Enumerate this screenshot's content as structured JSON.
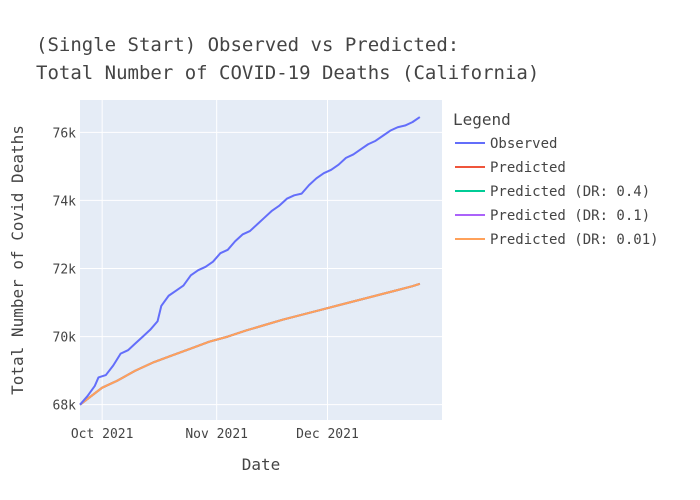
{
  "chart_data": {
    "type": "line",
    "title_lines": [
      "(Single Start) Observed vs Predicted:",
      "Total Number of COVID-19 Deaths (California)"
    ],
    "xlabel": "Date",
    "ylabel": "Total Number of Covid Deaths",
    "xlim": [
      "2021-09-25",
      "2022-01-01"
    ],
    "ylim": [
      67550,
      76950
    ],
    "x_ticks": [
      {
        "date": "2021-10-01",
        "label": "Oct 2021"
      },
      {
        "date": "2021-11-01",
        "label": "Nov 2021"
      },
      {
        "date": "2021-12-01",
        "label": "Dec 2021"
      }
    ],
    "y_ticks": [
      {
        "value": 68000,
        "label": "68k"
      },
      {
        "value": 70000,
        "label": "70k"
      },
      {
        "value": 72000,
        "label": "72k"
      },
      {
        "value": 74000,
        "label": "74k"
      },
      {
        "value": 76000,
        "label": "76k"
      }
    ],
    "grid": true,
    "legend_title": "Legend",
    "legend_position": "right",
    "colors": {
      "plot_bg": "#e5ecf6",
      "grid": "#ffffff"
    },
    "series": [
      {
        "name": "Observed",
        "color": "#636efa",
        "points": [
          [
            "2021-09-25",
            68000
          ],
          [
            "2021-09-27",
            68250
          ],
          [
            "2021-09-29",
            68550
          ],
          [
            "2021-09-30",
            68800
          ],
          [
            "2021-10-02",
            68870
          ],
          [
            "2021-10-04",
            69150
          ],
          [
            "2021-10-06",
            69500
          ],
          [
            "2021-10-08",
            69600
          ],
          [
            "2021-10-10",
            69800
          ],
          [
            "2021-10-12",
            70000
          ],
          [
            "2021-10-14",
            70200
          ],
          [
            "2021-10-16",
            70450
          ],
          [
            "2021-10-17",
            70900
          ],
          [
            "2021-10-19",
            71200
          ],
          [
            "2021-10-21",
            71350
          ],
          [
            "2021-10-23",
            71500
          ],
          [
            "2021-10-25",
            71800
          ],
          [
            "2021-10-27",
            71950
          ],
          [
            "2021-10-29",
            72050
          ],
          [
            "2021-10-31",
            72200
          ],
          [
            "2021-11-02",
            72450
          ],
          [
            "2021-11-04",
            72550
          ],
          [
            "2021-11-06",
            72800
          ],
          [
            "2021-11-08",
            73000
          ],
          [
            "2021-11-10",
            73100
          ],
          [
            "2021-11-12",
            73300
          ],
          [
            "2021-11-14",
            73500
          ],
          [
            "2021-11-16",
            73700
          ],
          [
            "2021-11-18",
            73850
          ],
          [
            "2021-11-20",
            74050
          ],
          [
            "2021-11-22",
            74150
          ],
          [
            "2021-11-24",
            74200
          ],
          [
            "2021-11-26",
            74450
          ],
          [
            "2021-11-28",
            74650
          ],
          [
            "2021-11-30",
            74800
          ],
          [
            "2021-12-02",
            74900
          ],
          [
            "2021-12-04",
            75050
          ],
          [
            "2021-12-06",
            75250
          ],
          [
            "2021-12-08",
            75350
          ],
          [
            "2021-12-10",
            75500
          ],
          [
            "2021-12-12",
            75650
          ],
          [
            "2021-12-14",
            75750
          ],
          [
            "2021-12-16",
            75900
          ],
          [
            "2021-12-18",
            76050
          ],
          [
            "2021-12-20",
            76150
          ],
          [
            "2021-12-22",
            76200
          ],
          [
            "2021-12-24",
            76300
          ],
          [
            "2021-12-26",
            76450
          ]
        ]
      },
      {
        "name": "Predicted",
        "color": "#ef553b",
        "points": [
          [
            "2021-09-25",
            68000
          ],
          [
            "2021-09-28",
            68250
          ],
          [
            "2021-10-01",
            68500
          ],
          [
            "2021-10-05",
            68700
          ],
          [
            "2021-10-10",
            69000
          ],
          [
            "2021-10-15",
            69250
          ],
          [
            "2021-10-20",
            69450
          ],
          [
            "2021-10-25",
            69650
          ],
          [
            "2021-10-30",
            69850
          ],
          [
            "2021-11-04",
            70000
          ],
          [
            "2021-11-09",
            70180
          ],
          [
            "2021-11-14",
            70340
          ],
          [
            "2021-11-19",
            70500
          ],
          [
            "2021-11-24",
            70640
          ],
          [
            "2021-11-29",
            70780
          ],
          [
            "2021-12-04",
            70920
          ],
          [
            "2021-12-09",
            71060
          ],
          [
            "2021-12-14",
            71200
          ],
          [
            "2021-12-19",
            71340
          ],
          [
            "2021-12-24",
            71480
          ],
          [
            "2021-12-26",
            71550
          ]
        ]
      },
      {
        "name": "Predicted (DR: 0.4)",
        "color": "#00cc96",
        "points": [
          [
            "2021-09-25",
            68000
          ],
          [
            "2021-09-28",
            68250
          ],
          [
            "2021-10-01",
            68500
          ],
          [
            "2021-10-05",
            68700
          ],
          [
            "2021-10-10",
            69000
          ],
          [
            "2021-10-15",
            69250
          ],
          [
            "2021-10-20",
            69450
          ],
          [
            "2021-10-25",
            69650
          ],
          [
            "2021-10-30",
            69850
          ],
          [
            "2021-11-04",
            70000
          ],
          [
            "2021-11-09",
            70180
          ],
          [
            "2021-11-14",
            70340
          ],
          [
            "2021-11-19",
            70500
          ],
          [
            "2021-11-24",
            70640
          ],
          [
            "2021-11-29",
            70780
          ],
          [
            "2021-12-04",
            70920
          ],
          [
            "2021-12-09",
            71060
          ],
          [
            "2021-12-14",
            71200
          ],
          [
            "2021-12-19",
            71340
          ],
          [
            "2021-12-24",
            71480
          ],
          [
            "2021-12-26",
            71550
          ]
        ]
      },
      {
        "name": "Predicted (DR: 0.1)",
        "color": "#ab63fa",
        "points": [
          [
            "2021-09-25",
            68000
          ],
          [
            "2021-09-28",
            68250
          ],
          [
            "2021-10-01",
            68500
          ],
          [
            "2021-10-05",
            68700
          ],
          [
            "2021-10-10",
            69000
          ],
          [
            "2021-10-15",
            69250
          ],
          [
            "2021-10-20",
            69450
          ],
          [
            "2021-10-25",
            69650
          ],
          [
            "2021-10-30",
            69850
          ],
          [
            "2021-11-04",
            70000
          ],
          [
            "2021-11-09",
            70180
          ],
          [
            "2021-11-14",
            70340
          ],
          [
            "2021-11-19",
            70500
          ],
          [
            "2021-11-24",
            70640
          ],
          [
            "2021-11-29",
            70780
          ],
          [
            "2021-12-04",
            70920
          ],
          [
            "2021-12-09",
            71060
          ],
          [
            "2021-12-14",
            71200
          ],
          [
            "2021-12-19",
            71340
          ],
          [
            "2021-12-24",
            71480
          ],
          [
            "2021-12-26",
            71550
          ]
        ]
      },
      {
        "name": "Predicted (DR: 0.01)",
        "color": "#ffa15a",
        "points": [
          [
            "2021-09-25",
            68000
          ],
          [
            "2021-09-28",
            68250
          ],
          [
            "2021-10-01",
            68500
          ],
          [
            "2021-10-05",
            68700
          ],
          [
            "2021-10-10",
            69000
          ],
          [
            "2021-10-15",
            69250
          ],
          [
            "2021-10-20",
            69450
          ],
          [
            "2021-10-25",
            69650
          ],
          [
            "2021-10-30",
            69850
          ],
          [
            "2021-11-04",
            70000
          ],
          [
            "2021-11-09",
            70180
          ],
          [
            "2021-11-14",
            70340
          ],
          [
            "2021-11-19",
            70500
          ],
          [
            "2021-11-24",
            70640
          ],
          [
            "2021-11-29",
            70780
          ],
          [
            "2021-12-04",
            70920
          ],
          [
            "2021-12-09",
            71060
          ],
          [
            "2021-12-14",
            71200
          ],
          [
            "2021-12-19",
            71340
          ],
          [
            "2021-12-24",
            71480
          ],
          [
            "2021-12-26",
            71550
          ]
        ]
      }
    ]
  }
}
